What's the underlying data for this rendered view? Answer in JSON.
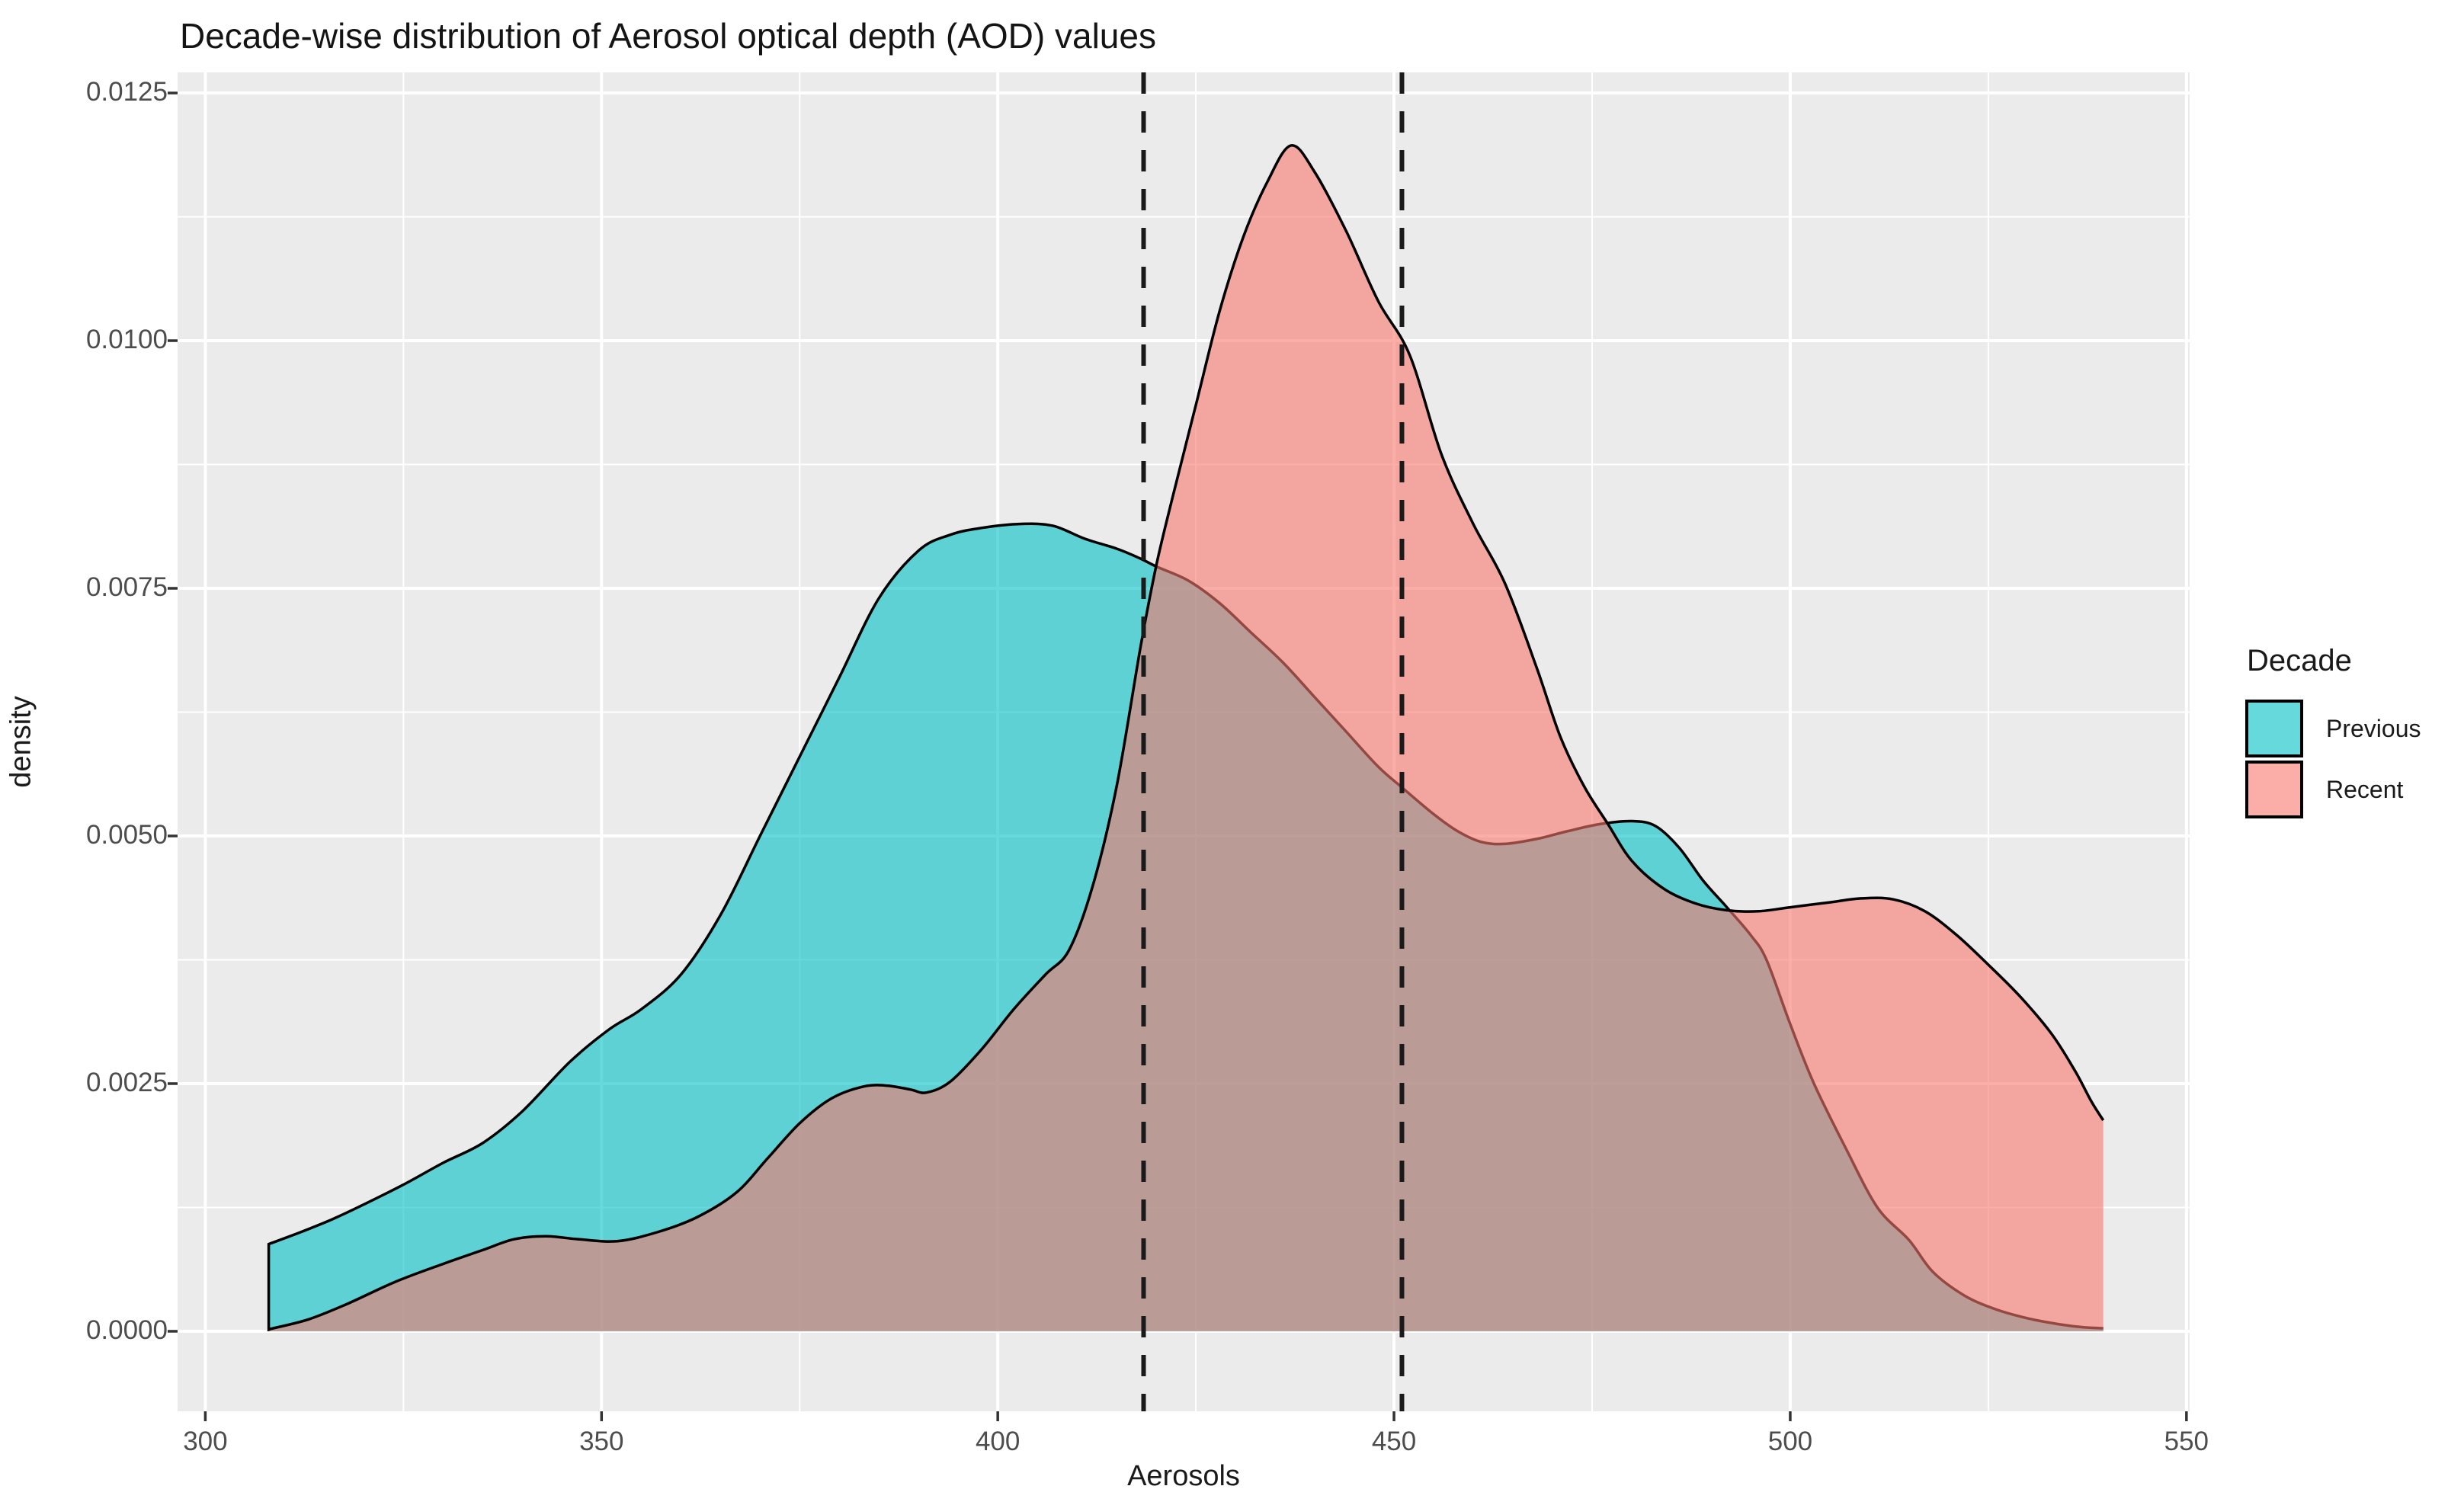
{
  "page": {
    "background": "#FFFFFF"
  },
  "chart_data": {
    "type": "area",
    "subtype": "density",
    "title": "Decade-wise distribution of Aerosol optical depth (AOD) values",
    "xlabel": "Aerosols",
    "ylabel": "density",
    "panel_bg": "#EBEBEB",
    "grid_color": "#FFFFFF",
    "grid": "on",
    "xlim": [
      296.5,
      550.4
    ],
    "ylim": [
      -0.000808,
      0.012708
    ],
    "x_ticks": [
      300,
      350,
      400,
      450,
      500,
      550
    ],
    "x_tick_labels": [
      "300",
      "350",
      "400",
      "450",
      "500",
      "550"
    ],
    "x_minor_ticks": [
      325,
      375,
      425,
      475,
      525
    ],
    "y_ticks": [
      0.0,
      0.0025,
      0.005,
      0.0075,
      0.01,
      0.0125
    ],
    "y_tick_labels": [
      "0.0000",
      "0.0025",
      "0.0050",
      "0.0075",
      "0.0100",
      "0.0125"
    ],
    "y_minor_ticks": [
      0.00125,
      0.00375,
      0.00625,
      0.00875,
      0.01125
    ],
    "tick_color": "#333333",
    "tick_label_color": "#4D4D4D",
    "vlines": {
      "values": [
        418.4,
        451.0
      ],
      "style": "dashed",
      "color": "#1A1A1A"
    },
    "fill_opacity": 0.6,
    "stroke_color": "#000000",
    "legend": {
      "title": "Decade",
      "position": "right",
      "entries": [
        {
          "label": "Previous",
          "color": "#00BFC4"
        },
        {
          "label": "Recent",
          "color": "#F8766D"
        }
      ]
    },
    "series": [
      {
        "name": "Previous",
        "color": "#00BFC4",
        "points": [
          [
            308,
            0.00088
          ],
          [
            312,
            0.001
          ],
          [
            316,
            0.00113
          ],
          [
            320,
            0.00128
          ],
          [
            325,
            0.00148
          ],
          [
            330,
            0.0017
          ],
          [
            335,
            0.0019
          ],
          [
            340,
            0.00222
          ],
          [
            346,
            0.00272
          ],
          [
            351,
            0.00305
          ],
          [
            355,
            0.00325
          ],
          [
            360,
            0.0036
          ],
          [
            365,
            0.0042
          ],
          [
            370,
            0.005
          ],
          [
            375,
            0.0058
          ],
          [
            380,
            0.0066
          ],
          [
            385,
            0.0074
          ],
          [
            390,
            0.00788
          ],
          [
            394,
            0.00804
          ],
          [
            398,
            0.00811
          ],
          [
            403,
            0.00815
          ],
          [
            407,
            0.00813
          ],
          [
            411,
            0.008
          ],
          [
            415,
            0.0079
          ],
          [
            418,
            0.0078
          ],
          [
            420,
            0.00772
          ],
          [
            424,
            0.00758
          ],
          [
            428,
            0.00735
          ],
          [
            432,
            0.00705
          ],
          [
            436,
            0.00675
          ],
          [
            440,
            0.0064
          ],
          [
            444,
            0.00605
          ],
          [
            448,
            0.0057
          ],
          [
            451,
            0.00549
          ],
          [
            455,
            0.00522
          ],
          [
            458,
            0.00505
          ],
          [
            461,
            0.00494
          ],
          [
            464,
            0.00492
          ],
          [
            468,
            0.00497
          ],
          [
            472,
            0.00505
          ],
          [
            476,
            0.00512
          ],
          [
            480,
            0.00515
          ],
          [
            483,
            0.0051
          ],
          [
            486,
            0.00488
          ],
          [
            489,
            0.00455
          ],
          [
            492,
            0.00428
          ],
          [
            495,
            0.004
          ],
          [
            497,
            0.00375
          ],
          [
            500,
            0.0031
          ],
          [
            503,
            0.0025
          ],
          [
            507,
            0.00185
          ],
          [
            511,
            0.00125
          ],
          [
            515,
            0.00092
          ],
          [
            518,
            0.0006
          ],
          [
            522,
            0.00036
          ],
          [
            526,
            0.00022
          ],
          [
            530,
            0.00013
          ],
          [
            534,
            7e-05
          ],
          [
            537,
            4e-05
          ],
          [
            539.5,
            3e-05
          ]
        ]
      },
      {
        "name": "Recent",
        "color": "#F8766D",
        "points": [
          [
            308,
            2e-05
          ],
          [
            313,
            0.00012
          ],
          [
            318,
            0.00028
          ],
          [
            324,
            0.0005
          ],
          [
            330,
            0.00068
          ],
          [
            335,
            0.00082
          ],
          [
            339,
            0.00093
          ],
          [
            343,
            0.00096
          ],
          [
            347,
            0.00093
          ],
          [
            352,
            0.00091
          ],
          [
            357,
            0.001
          ],
          [
            362,
            0.00115
          ],
          [
            367,
            0.0014
          ],
          [
            371,
            0.00175
          ],
          [
            375,
            0.0021
          ],
          [
            379,
            0.00235
          ],
          [
            383,
            0.00247
          ],
          [
            386,
            0.00248
          ],
          [
            389,
            0.00244
          ],
          [
            391,
            0.00241
          ],
          [
            394,
            0.00252
          ],
          [
            398,
            0.00285
          ],
          [
            402,
            0.00325
          ],
          [
            406,
            0.0036
          ],
          [
            409,
            0.00385
          ],
          [
            412,
            0.0045
          ],
          [
            415,
            0.0055
          ],
          [
            418,
            0.0069
          ],
          [
            420,
            0.00773
          ],
          [
            422,
            0.0084
          ],
          [
            425,
            0.00935
          ],
          [
            428,
            0.0103
          ],
          [
            431,
            0.01105
          ],
          [
            434,
            0.0116
          ],
          [
            437,
            0.01197
          ],
          [
            440,
            0.0117
          ],
          [
            444,
            0.0111
          ],
          [
            448,
            0.0104
          ],
          [
            452,
            0.00985
          ],
          [
            456,
            0.00885
          ],
          [
            460,
            0.00815
          ],
          [
            464,
            0.00755
          ],
          [
            468,
            0.0067
          ],
          [
            471,
            0.006
          ],
          [
            474,
            0.0055
          ],
          [
            477,
            0.00512
          ],
          [
            480,
            0.00475
          ],
          [
            484,
            0.00447
          ],
          [
            488,
            0.00432
          ],
          [
            492,
            0.00425
          ],
          [
            496,
            0.00424
          ],
          [
            500,
            0.00428
          ],
          [
            505,
            0.00433
          ],
          [
            509,
            0.00437
          ],
          [
            513,
            0.00436
          ],
          [
            517,
            0.00424
          ],
          [
            521,
            0.004
          ],
          [
            525,
            0.0037
          ],
          [
            529,
            0.00338
          ],
          [
            533,
            0.003
          ],
          [
            536,
            0.00262
          ],
          [
            538,
            0.00232
          ],
          [
            539.5,
            0.00213
          ]
        ]
      }
    ]
  }
}
